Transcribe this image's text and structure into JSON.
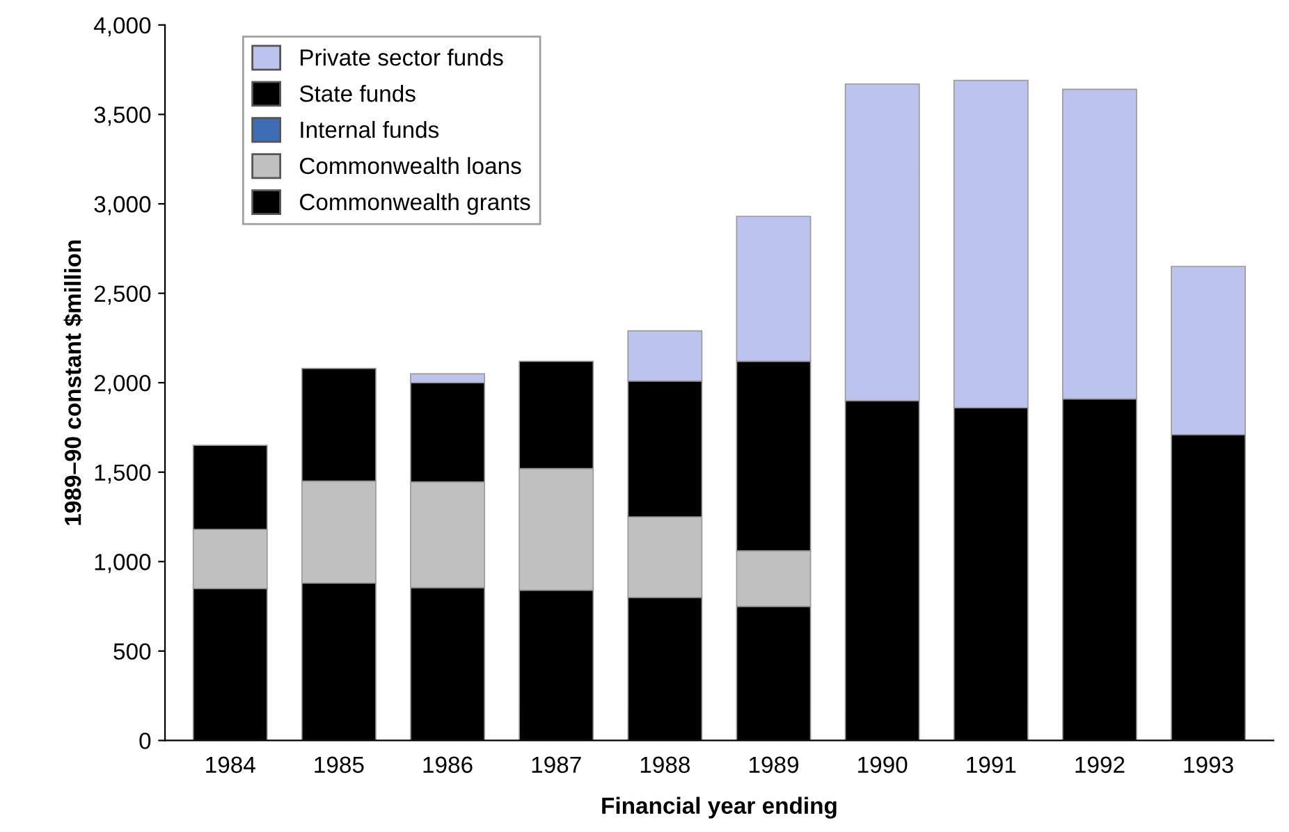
{
  "chart_data": {
    "type": "bar",
    "stacked": true,
    "xlabel": "Financial year ending",
    "ylabel": "1989–90 constant $million",
    "categories": [
      "1984",
      "1985",
      "1986",
      "1987",
      "1988",
      "1989",
      "1990",
      "1991",
      "1992",
      "1993"
    ],
    "series": [
      {
        "name": "Commonwealth grants",
        "color": "#000000",
        "values": [
          850,
          880,
          855,
          840,
          800,
          750,
          1900,
          1860,
          1910,
          1710
        ]
      },
      {
        "name": "Commonwealth loans",
        "color": "#c0c0c0",
        "values": [
          330,
          570,
          590,
          680,
          450,
          310,
          null,
          null,
          null,
          null
        ]
      },
      {
        "name": "Internal funds",
        "color": "#3f6db5",
        "values": [
          null,
          null,
          null,
          null,
          null,
          null,
          null,
          null,
          null,
          null
        ]
      },
      {
        "name": "State funds",
        "color": "#000000",
        "values": [
          470,
          630,
          555,
          600,
          760,
          1060,
          null,
          null,
          null,
          null
        ]
      },
      {
        "name": "Private sector funds",
        "color": "#bcc4ee",
        "values": [
          null,
          null,
          50,
          null,
          280,
          810,
          1770,
          1830,
          1730,
          940
        ]
      }
    ],
    "ylim": [
      0,
      4000
    ],
    "yticks": [
      0,
      500,
      {
        "value": 1000,
        "label": "1,000"
      },
      {
        "value": 1500,
        "label": "1,500"
      },
      {
        "value": 2000,
        "label": "2,000"
      },
      {
        "value": 2500,
        "label": "2,500"
      },
      {
        "value": 3000,
        "label": "3,000"
      },
      {
        "value": 3500,
        "label": "3,500"
      },
      {
        "value": 4000,
        "label": "4,000"
      }
    ],
    "grid": false,
    "legend": "top left"
  }
}
